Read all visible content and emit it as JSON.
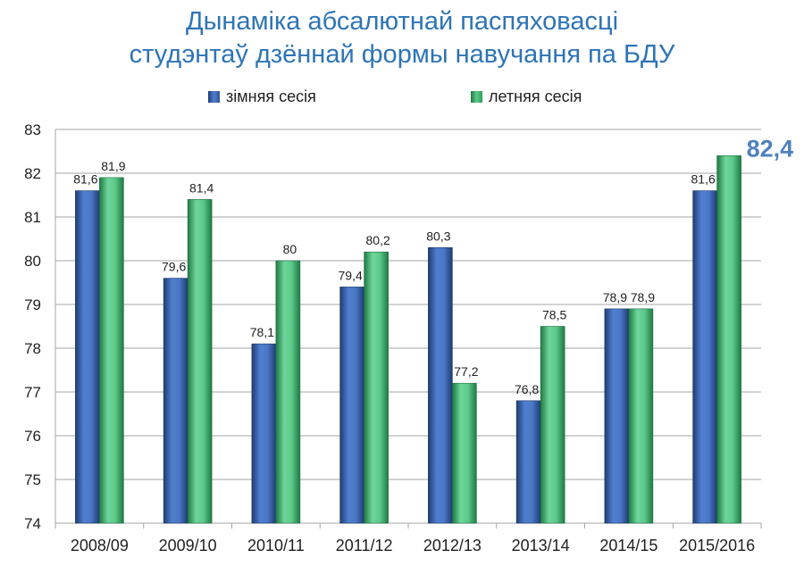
{
  "chart_data": {
    "type": "bar",
    "title": [
      "Дынаміка абсалютнай паспяховасці",
      "студэнтаў дзённай формы навучання па БДУ"
    ],
    "categories": [
      "2008/09",
      "2009/10",
      "2010/11",
      "2011/12",
      "2012/13",
      "2013/14",
      "2014/15",
      "2015/2016"
    ],
    "series": [
      {
        "name": "зімняя сесія",
        "values": [
          81.6,
          79.6,
          78.1,
          79.4,
          80.3,
          76.8,
          78.9,
          81.6
        ],
        "labels": [
          "81,6",
          "79,6",
          "78,1",
          "79,4",
          "80,3",
          "76,8",
          "78,9",
          "81,6"
        ]
      },
      {
        "name": "летняя сесія",
        "values": [
          81.9,
          81.4,
          80.0,
          80.2,
          77.2,
          78.5,
          78.9,
          82.4
        ],
        "labels": [
          "81,9",
          "81,4",
          "80",
          "80,2",
          "77,2",
          "78,5",
          "78,9",
          "82,4"
        ]
      }
    ],
    "ylim": [
      74,
      83
    ],
    "yticks": [
      74,
      75,
      76,
      77,
      78,
      79,
      80,
      81,
      82,
      83
    ],
    "grid": true,
    "legend_position": "top",
    "highlight_label": {
      "series": 1,
      "category": 7,
      "text": "82,4"
    },
    "colors": {
      "winter": "#2f5597",
      "summer": "#2e9e5b",
      "title": "#2e74b5",
      "highlight": "#4f81bd",
      "grid": "#a6a6a6"
    }
  }
}
